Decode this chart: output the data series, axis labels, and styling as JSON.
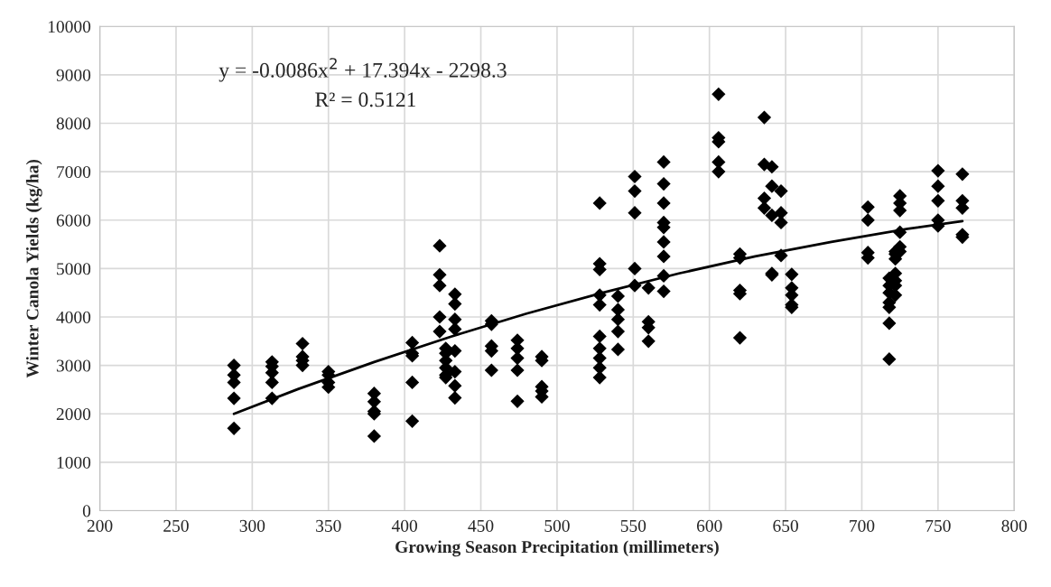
{
  "chart_data": {
    "type": "scatter",
    "xlabel": "Growing Season Precipitation (millimeters)",
    "ylabel": "Winter Canola Yields (kg/ha)",
    "xlim": [
      200,
      800
    ],
    "xticks": [
      200,
      250,
      300,
      350,
      400,
      450,
      500,
      550,
      600,
      650,
      700,
      750,
      800
    ],
    "ylim": [
      0,
      10000
    ],
    "yticks": [
      0,
      1000,
      2000,
      3000,
      4000,
      5000,
      6000,
      7000,
      8000,
      9000,
      10000
    ],
    "grid": true,
    "legend": false,
    "annotations": [
      "y = -0.0086x$^{2}$ + 17.394x - 2298.3",
      "R² = 0.5121"
    ],
    "series": [
      {
        "color": "#000000",
        "marker": "diamond",
        "x": [
          288,
          288,
          288,
          288,
          288,
          313,
          313,
          313,
          313,
          313,
          333,
          333,
          333,
          333,
          350,
          350,
          350,
          350,
          380,
          380,
          380,
          380,
          380,
          405,
          405,
          405,
          405,
          405,
          423,
          423,
          423,
          423,
          423,
          427,
          427,
          427,
          427,
          427,
          427,
          433,
          433,
          433,
          433,
          433,
          433,
          433,
          433,
          457,
          457,
          457,
          457,
          457,
          474,
          474,
          474,
          474,
          474,
          490,
          490,
          490,
          490,
          490,
          528,
          528,
          528,
          528,
          528,
          528,
          528,
          528,
          528,
          528,
          540,
          540,
          540,
          540,
          540,
          551,
          551,
          551,
          551,
          551,
          560,
          560,
          560,
          560,
          570,
          570,
          570,
          570,
          570,
          570,
          570,
          570,
          570,
          606,
          606,
          606,
          606,
          606,
          620,
          620,
          620,
          620,
          620,
          636,
          636,
          636,
          636,
          641,
          641,
          641,
          641,
          641,
          647,
          647,
          647,
          647,
          654,
          654,
          654,
          654,
          654,
          704,
          704,
          704,
          704,
          718,
          718,
          718,
          718,
          718,
          718,
          718,
          722,
          722,
          722,
          722,
          722,
          722,
          722,
          725,
          725,
          725,
          725,
          725,
          725,
          750,
          750,
          750,
          750,
          750,
          766,
          766,
          766,
          766,
          766
        ],
        "values": [
          3000,
          2800,
          2650,
          2320,
          1700,
          3070,
          2980,
          2850,
          2650,
          2320,
          3450,
          3180,
          3100,
          3000,
          2870,
          2800,
          2650,
          2550,
          2420,
          2250,
          2050,
          2000,
          1540,
          3470,
          3250,
          3200,
          2650,
          1850,
          5470,
          4870,
          4650,
          4000,
          3700,
          3350,
          3250,
          3100,
          2950,
          2800,
          2750,
          4470,
          4270,
          3950,
          3750,
          3300,
          2870,
          2580,
          2330,
          3920,
          3850,
          3400,
          3300,
          2900,
          3520,
          3350,
          3150,
          2900,
          2260,
          3180,
          3100,
          2560,
          2470,
          2350,
          6350,
          5100,
          4980,
          4450,
          4250,
          3600,
          3350,
          3150,
          2950,
          2750,
          4430,
          4150,
          3950,
          3700,
          3330,
          6900,
          6600,
          6150,
          5000,
          4650,
          4600,
          3900,
          3780,
          3500,
          7200,
          6750,
          6350,
          5950,
          5850,
          5550,
          5250,
          4850,
          4530,
          8600,
          7700,
          7620,
          7200,
          7000,
          5300,
          5220,
          4550,
          4480,
          3570,
          8120,
          7150,
          6450,
          6250,
          7100,
          6700,
          6100,
          4900,
          4870,
          6600,
          6150,
          5950,
          5270,
          4880,
          4600,
          4450,
          4250,
          4200,
          6270,
          6000,
          5330,
          5220,
          4800,
          4650,
          4500,
          4300,
          4200,
          3870,
          3130,
          5350,
          5300,
          5200,
          4900,
          4750,
          4650,
          4450,
          6500,
          6350,
          6200,
          5750,
          5450,
          5350,
          7020,
          6700,
          6400,
          6000,
          5880,
          6950,
          6400,
          6250,
          5700,
          5650
        ]
      },
      {
        "type": "line",
        "color": "#000000",
        "marker": "none",
        "line_style": "solid",
        "x": [
          288,
          330,
          380,
          430,
          480,
          530,
          580,
          630,
          680,
          730,
          766
        ],
        "values": [
          2000,
          2510,
          3070,
          3590,
          4070,
          4500,
          4900,
          5250,
          5550,
          5820,
          5980
        ]
      }
    ]
  }
}
